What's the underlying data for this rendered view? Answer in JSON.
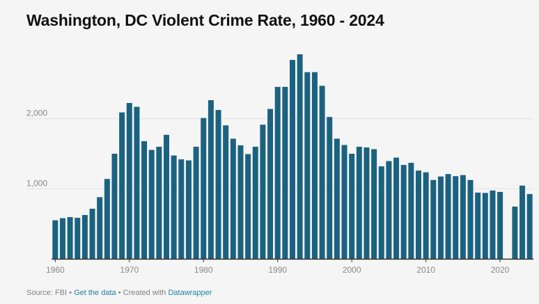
{
  "title": "Washington, DC Violent Crime Rate, 1960 - 2024",
  "footer": {
    "source_label": "Source:",
    "source": "FBI",
    "separator": "•",
    "get_data": "Get the data",
    "created_with": "Created with",
    "tool": "Datawrapper"
  },
  "colors": {
    "bar": "#1b6280",
    "link": "#1d81a2",
    "grid": "#e2e2e2",
    "axis": "#333333"
  },
  "chart_data": {
    "type": "bar",
    "title": "Washington, DC Violent Crime Rate, 1960 - 2024",
    "xlabel": "",
    "ylabel": "",
    "ylim": [
      0,
      3000
    ],
    "grid": true,
    "x_ticks": [
      "1960",
      "1970",
      "1980",
      "1990",
      "2000",
      "2010",
      "2020"
    ],
    "y_ticks": [
      "1,000",
      "2,000"
    ],
    "x": [
      1960,
      1961,
      1962,
      1963,
      1964,
      1965,
      1966,
      1967,
      1968,
      1969,
      1970,
      1971,
      1972,
      1973,
      1974,
      1975,
      1976,
      1977,
      1978,
      1979,
      1980,
      1981,
      1982,
      1983,
      1984,
      1985,
      1986,
      1987,
      1988,
      1989,
      1990,
      1991,
      1992,
      1993,
      1994,
      1995,
      1996,
      1997,
      1998,
      1999,
      2000,
      2001,
      2002,
      2003,
      2004,
      2005,
      2006,
      2007,
      2008,
      2009,
      2010,
      2011,
      2012,
      2013,
      2014,
      2015,
      2016,
      2017,
      2018,
      2019,
      2020,
      2021,
      2022,
      2023,
      2024
    ],
    "values": [
      550,
      580,
      595,
      585,
      625,
      715,
      880,
      1140,
      1500,
      2090,
      2225,
      2170,
      1680,
      1555,
      1600,
      1770,
      1475,
      1420,
      1405,
      1600,
      2010,
      2265,
      2125,
      1905,
      1715,
      1620,
      1495,
      1600,
      1915,
      2140,
      2455,
      2455,
      2840,
      2920,
      2665,
      2665,
      2470,
      2025,
      1715,
      1625,
      1500,
      1600,
      1590,
      1565,
      1320,
      1395,
      1445,
      1340,
      1370,
      1260,
      1235,
      1125,
      1175,
      1210,
      1180,
      1195,
      1125,
      945,
      940,
      975,
      955,
      null,
      745,
      1045,
      925
    ]
  }
}
